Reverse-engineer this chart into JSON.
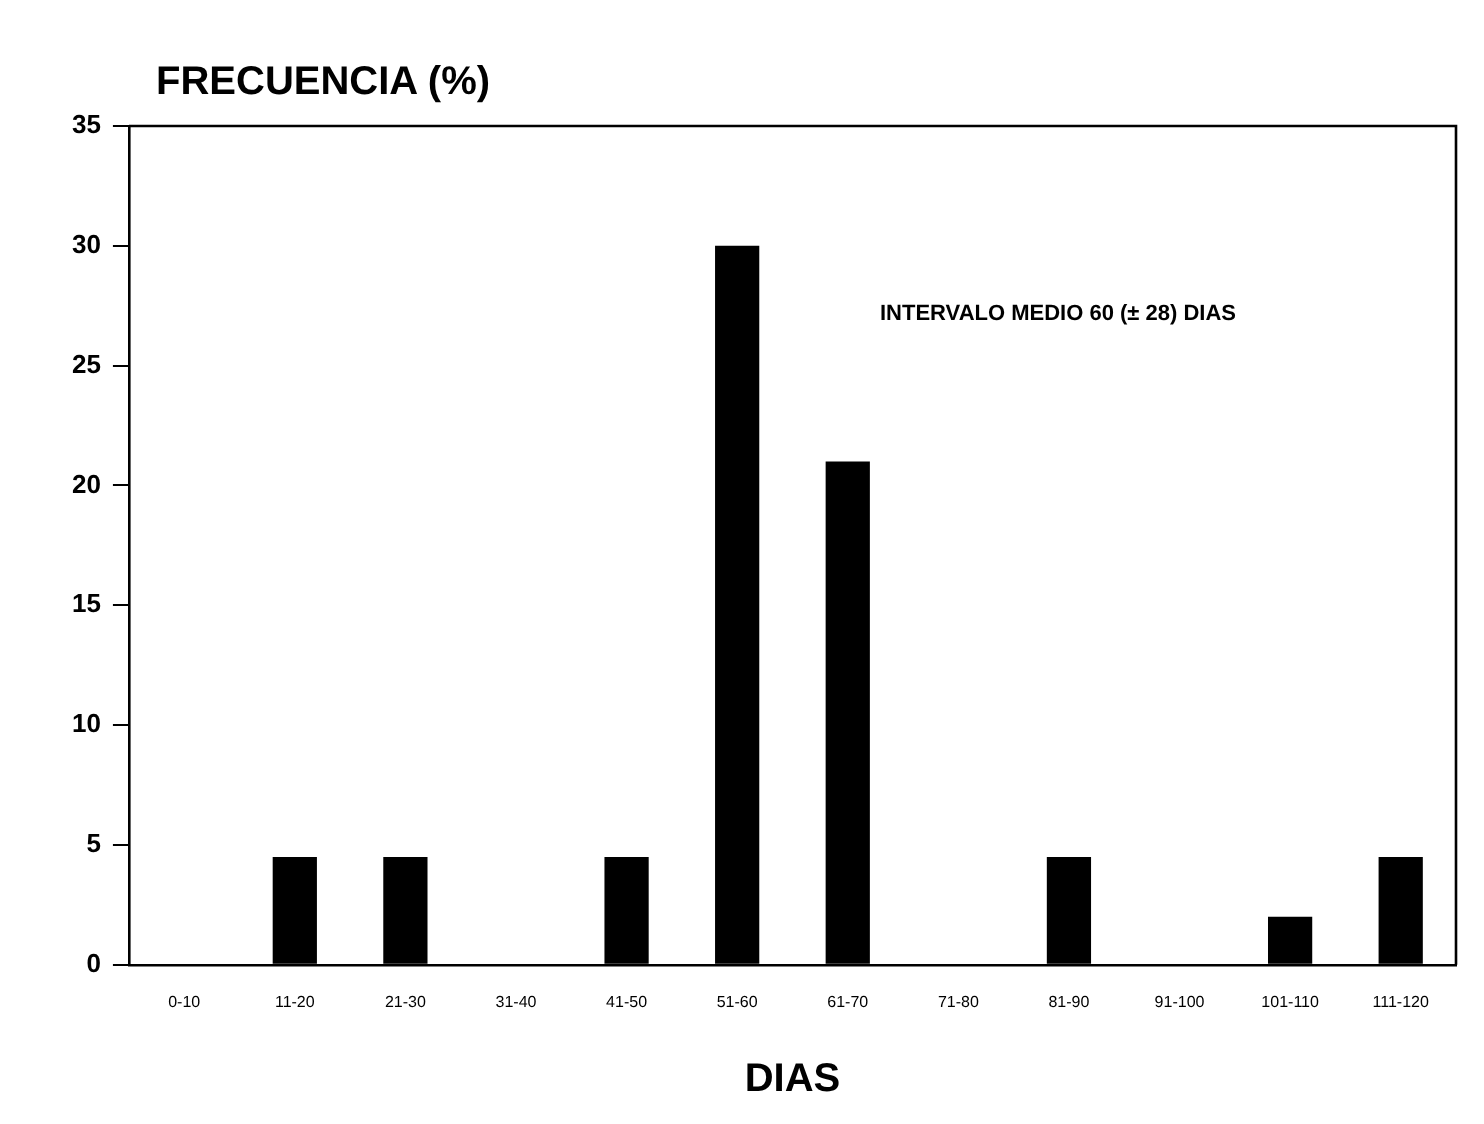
{
  "chart_data": {
    "type": "bar",
    "title": "FRECUENCIA (%)",
    "xlabel": "DIAS",
    "categories": [
      "0-10",
      "11-20",
      "21-30",
      "31-40",
      "41-50",
      "51-60",
      "61-70",
      "71-80",
      "81-90",
      "91-100",
      "101-110",
      "111-120"
    ],
    "values": [
      0,
      4.5,
      4.5,
      0,
      4.5,
      30,
      21,
      0,
      4.5,
      0,
      2,
      4.5
    ],
    "color": "#000000",
    "ylim": [
      0,
      35
    ],
    "yticks": [
      0,
      5,
      10,
      15,
      20,
      25,
      30,
      35
    ],
    "grid": false,
    "legend": false,
    "annotations": [
      "INTERVALO MEDIO 60 (± 28) DIAS"
    ]
  }
}
